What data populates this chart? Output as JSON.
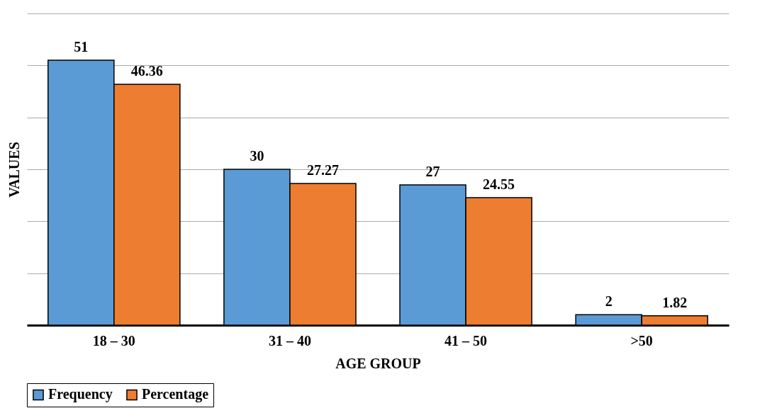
{
  "chart_data": {
    "type": "bar",
    "xlabel": "AGE GROUP",
    "ylabel": "VALUES",
    "categories": [
      "18 – 30",
      "31 – 40",
      "41 – 50",
      ">50"
    ],
    "series": [
      {
        "name": "Frequency",
        "color": "#5b9bd5",
        "values": [
          51,
          30,
          27,
          2
        ]
      },
      {
        "name": "Percentage",
        "color": "#ed7d31",
        "values": [
          46.36,
          27.27,
          24.55,
          1.82
        ]
      }
    ],
    "ylim": [
      0,
      60
    ],
    "yticks": [
      {
        "value": 0,
        "label": null
      },
      {
        "value": 10,
        "label": null
      },
      {
        "value": 20,
        "label": null
      },
      {
        "value": 30,
        "label": null
      },
      {
        "value": 40,
        "label": null
      },
      {
        "value": 50,
        "label": null
      },
      {
        "value": 60,
        "label": null
      }
    ],
    "grid": "y",
    "data_labels": true,
    "legend": "bottom"
  }
}
